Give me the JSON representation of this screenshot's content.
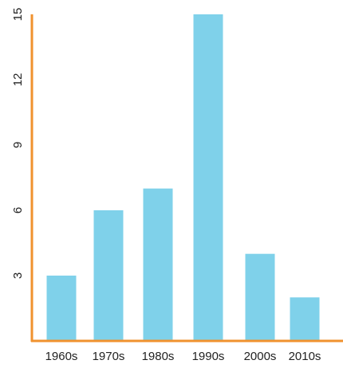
{
  "chart_data": {
    "type": "bar",
    "title": "",
    "xlabel": "",
    "ylabel": "",
    "categories": [
      "1960s",
      "1970s",
      "1980s",
      "1990s",
      "2000s",
      "2010s"
    ],
    "values": [
      3,
      6,
      7,
      15,
      4,
      2
    ],
    "ylim": [
      0,
      15
    ],
    "yticks": [
      "3",
      "6",
      "9",
      "12",
      "15"
    ],
    "grid": false,
    "legend": "none",
    "colors": {
      "bar": "#7fd1ea",
      "axis": "#f0922e",
      "text": "#222222"
    }
  }
}
